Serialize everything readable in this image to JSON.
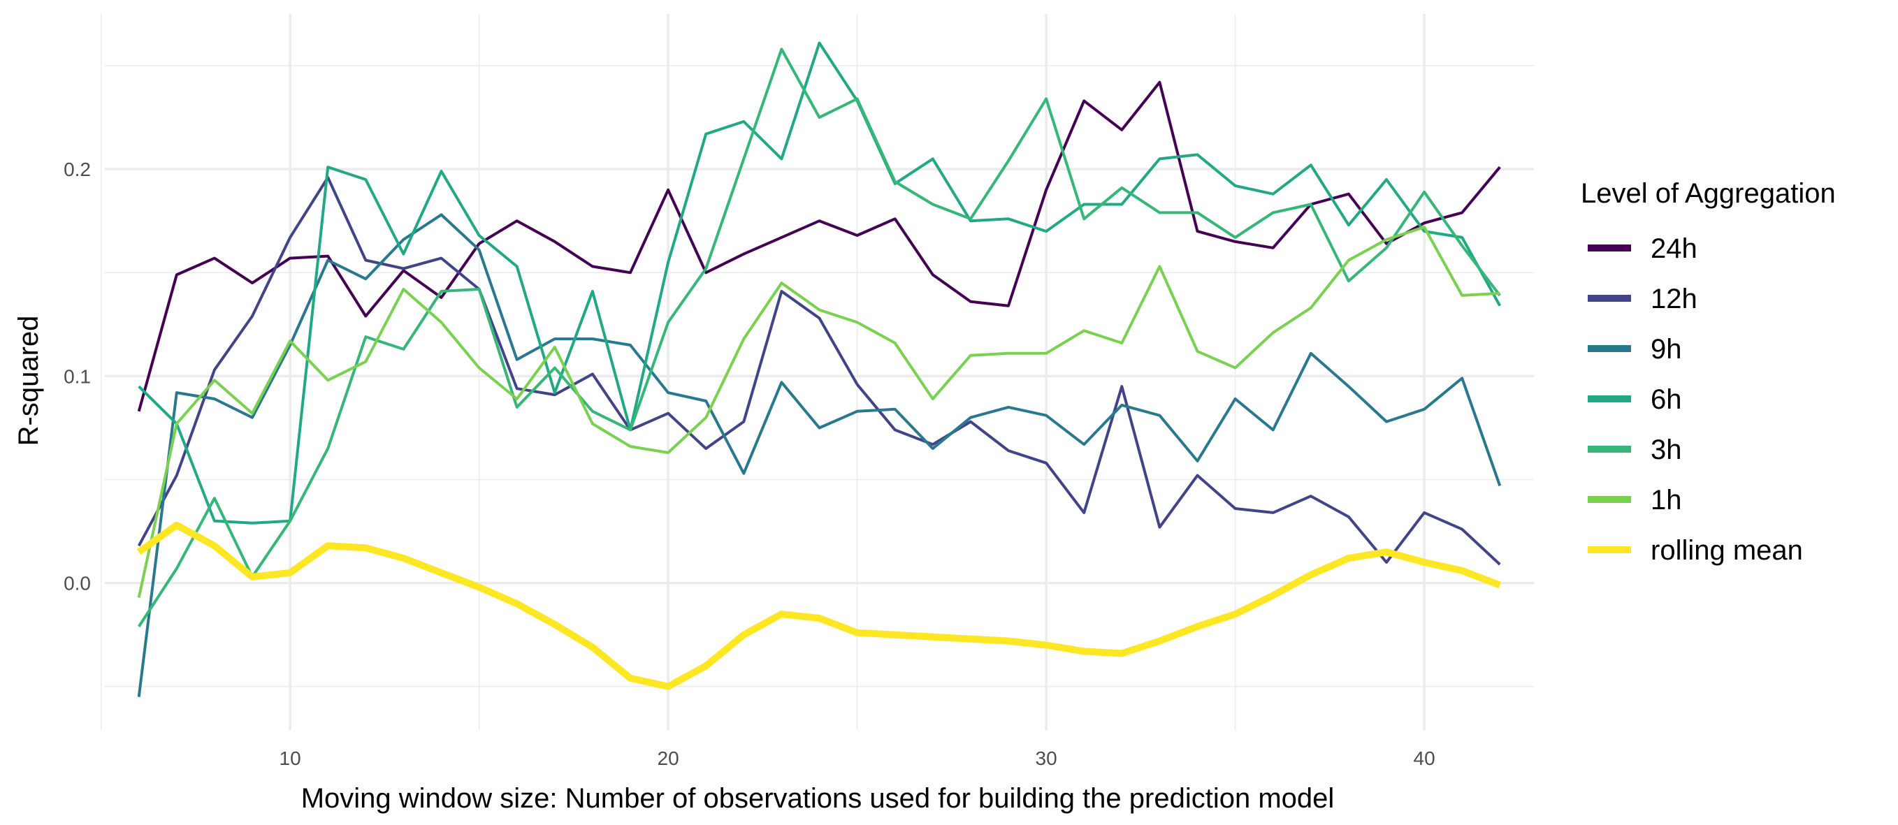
{
  "chart_data": {
    "type": "line",
    "title": "",
    "xlabel": "Moving window size: Number of observations used for building the prediction model",
    "ylabel": "R-squared",
    "xlim": [
      5.1,
      42.9
    ],
    "ylim": [
      -0.071,
      0.275
    ],
    "x_ticks": [
      10,
      20,
      30,
      40
    ],
    "y_ticks": [
      0.0,
      0.1,
      0.2
    ],
    "y_tick_labels": [
      "0.0",
      "0.1",
      "0.2"
    ],
    "x_minor": [
      5,
      15,
      25,
      35
    ],
    "y_minor": [
      -0.05,
      0.05,
      0.15,
      0.25
    ],
    "grid": true,
    "legend": {
      "title": "Level of Aggregation",
      "position": "right"
    },
    "x": [
      6,
      7,
      8,
      9,
      10,
      11,
      12,
      13,
      14,
      15,
      16,
      17,
      18,
      19,
      20,
      21,
      22,
      23,
      24,
      25,
      26,
      27,
      28,
      29,
      30,
      31,
      32,
      33,
      34,
      35,
      36,
      37,
      38,
      39,
      40,
      41,
      42
    ],
    "series": [
      {
        "name": "24h",
        "color": "#440154",
        "width": 4,
        "values": [
          0.083,
          0.149,
          0.157,
          0.145,
          0.157,
          0.158,
          0.129,
          0.151,
          0.138,
          0.164,
          0.175,
          0.165,
          0.153,
          0.15,
          0.19,
          0.15,
          0.159,
          0.167,
          0.175,
          0.168,
          0.176,
          0.149,
          0.136,
          0.134,
          0.19,
          0.233,
          0.219,
          0.242,
          0.17,
          0.165,
          0.162,
          0.183,
          0.188,
          0.164,
          0.174,
          0.179,
          0.201
        ]
      },
      {
        "name": "12h",
        "color": "#414487",
        "width": 4,
        "values": [
          0.018,
          0.052,
          0.103,
          0.129,
          0.167,
          0.196,
          0.156,
          0.152,
          0.157,
          0.142,
          0.094,
          0.091,
          0.101,
          0.074,
          0.082,
          0.065,
          0.078,
          0.141,
          0.128,
          0.096,
          0.074,
          0.067,
          0.078,
          0.064,
          0.058,
          0.034,
          0.095,
          0.027,
          0.052,
          0.036,
          0.034,
          0.042,
          0.032,
          0.01,
          0.034,
          0.026,
          0.009
        ]
      },
      {
        "name": "9h",
        "color": "#2A788E",
        "width": 4,
        "values": [
          -0.055,
          0.092,
          0.089,
          0.08,
          0.115,
          0.156,
          0.147,
          0.166,
          0.178,
          0.161,
          0.108,
          0.118,
          0.118,
          0.115,
          0.092,
          0.088,
          0.053,
          0.097,
          0.075,
          0.083,
          0.084,
          0.065,
          0.08,
          0.085,
          0.081,
          0.067,
          0.086,
          0.081,
          0.059,
          0.089,
          0.074,
          0.111,
          0.095,
          0.078,
          0.084,
          0.099,
          0.047
        ]
      },
      {
        "name": "6h",
        "color": "#22A884",
        "width": 4,
        "values": [
          0.095,
          0.077,
          0.03,
          0.029,
          0.03,
          0.201,
          0.195,
          0.159,
          0.199,
          0.168,
          0.153,
          0.092,
          0.141,
          0.074,
          0.155,
          0.217,
          0.223,
          0.205,
          0.261,
          0.233,
          0.193,
          0.205,
          0.175,
          0.176,
          0.17,
          0.183,
          0.183,
          0.205,
          0.207,
          0.192,
          0.188,
          0.202,
          0.173,
          0.195,
          0.17,
          0.167,
          0.134
        ]
      },
      {
        "name": "3h",
        "color": "#36B679",
        "width": 4,
        "values": [
          -0.021,
          0.007,
          0.041,
          0.003,
          0.03,
          0.065,
          0.119,
          0.113,
          0.141,
          0.142,
          0.085,
          0.104,
          0.083,
          0.074,
          0.126,
          0.152,
          0.205,
          0.258,
          0.225,
          0.234,
          0.194,
          0.183,
          0.176,
          0.204,
          0.234,
          0.176,
          0.191,
          0.179,
          0.179,
          0.167,
          0.179,
          0.183,
          0.146,
          0.162,
          0.189,
          0.163,
          0.139
        ]
      },
      {
        "name": "1h",
        "color": "#7AD151",
        "width": 4,
        "values": [
          -0.007,
          0.077,
          0.098,
          0.082,
          0.117,
          0.098,
          0.107,
          0.142,
          0.126,
          0.104,
          0.089,
          0.114,
          0.077,
          0.066,
          0.063,
          0.08,
          0.118,
          0.145,
          0.132,
          0.126,
          0.116,
          0.089,
          0.11,
          0.111,
          0.111,
          0.122,
          0.116,
          0.153,
          0.112,
          0.104,
          0.121,
          0.133,
          0.156,
          0.166,
          0.172,
          0.139,
          0.14
        ]
      },
      {
        "name": "rolling mean",
        "color": "#FDE725",
        "width": 10,
        "values": [
          0.015,
          0.028,
          0.018,
          0.003,
          0.005,
          0.018,
          0.017,
          0.012,
          0.005,
          -0.002,
          -0.01,
          -0.02,
          -0.031,
          -0.046,
          -0.05,
          -0.04,
          -0.025,
          -0.015,
          -0.017,
          -0.024,
          -0.025,
          -0.026,
          -0.027,
          -0.028,
          -0.03,
          -0.033,
          -0.034,
          -0.028,
          -0.021,
          -0.015,
          -0.006,
          0.004,
          0.012,
          0.015,
          0.01,
          0.006,
          -0.001
        ]
      }
    ]
  }
}
